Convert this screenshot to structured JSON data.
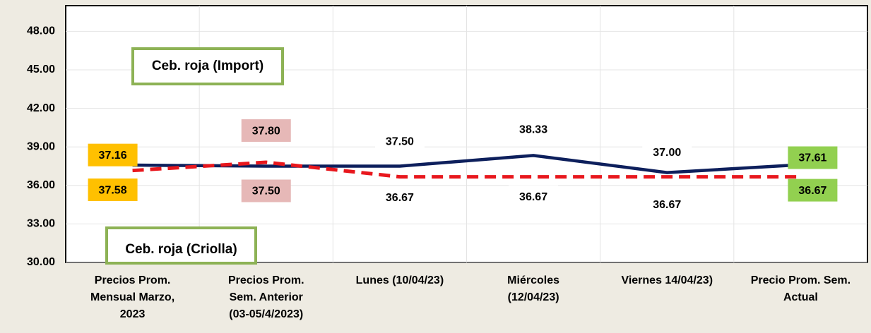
{
  "chart_data": {
    "type": "line",
    "categories": [
      "Precios Prom.\nMensual Marzo,\n2023",
      "Precios Prom.\nSem. Anterior\n(03-05/4/2023)",
      "Lunes  (10/04/23)",
      "Miércoles\n(12/04/23)",
      "Viernes  14/04/23)",
      "Precio Prom. Sem.\nActual"
    ],
    "series": [
      {
        "name": "Ceb. roja (Import)",
        "color": "#0d1f5c",
        "values": [
          37.58,
          37.5,
          37.5,
          38.33,
          37.0,
          37.61
        ],
        "value_labels": [
          "37.58",
          "37.50",
          "37.50",
          "38.33",
          "37.00",
          "37.61"
        ]
      },
      {
        "name": "Ceb. roja (Criolla)",
        "color": "#e8171d",
        "values": [
          37.16,
          37.8,
          36.67,
          36.67,
          36.67,
          36.67
        ],
        "value_labels": [
          "37.16",
          "37.80",
          "36.67",
          "36.67",
          "36.67",
          "36.67"
        ]
      }
    ],
    "label_box_colors": [
      "#ffc000",
      "#e6b8b7",
      null,
      null,
      null,
      "#92d050"
    ],
    "ylim": [
      30,
      50
    ],
    "yticks": [
      {
        "value": 30,
        "label": "30.00"
      },
      {
        "value": 33,
        "label": "33.00"
      },
      {
        "value": 36,
        "label": "36.00"
      },
      {
        "value": 39,
        "label": "39.00"
      },
      {
        "value": 42,
        "label": "42.00"
      },
      {
        "value": 45,
        "label": "45.00"
      },
      {
        "value": 48,
        "label": "48.00"
      }
    ],
    "grid": true
  }
}
